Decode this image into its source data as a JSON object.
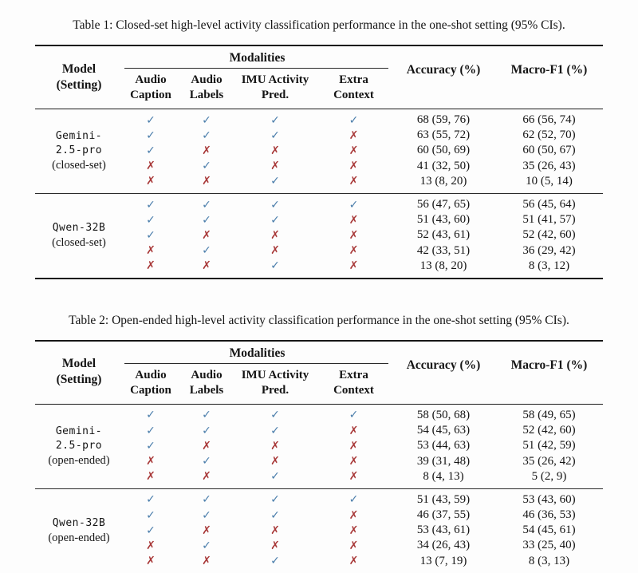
{
  "colors": {
    "check_blue": "#4a7dab",
    "cross_red": "#a83838",
    "rule_black": "#161616"
  },
  "glyphs": {
    "check": "✓",
    "cross": "✗"
  },
  "tables": [
    {
      "caption": "Table 1: Closed-set high-level activity classification performance in the one-shot setting (95% CIs).",
      "header": {
        "model_line1": "Model",
        "model_line2": "(Setting)",
        "modalities": "Modalities",
        "columns": [
          [
            "Audio",
            "Caption"
          ],
          [
            "Audio",
            "Labels"
          ],
          [
            "IMU Activity",
            "Pred."
          ],
          [
            "Extra",
            "Context"
          ]
        ],
        "accuracy": "Accuracy (%)",
        "macro_f1": "Macro-F1 (%)"
      },
      "sections": [
        {
          "model_lines": [
            "Gemini-",
            "2.5-pro"
          ],
          "setting": "(closed-set)",
          "rows": [
            {
              "marks": [
                "check",
                "check",
                "check",
                "check"
              ],
              "accuracy": "68 (59, 76)",
              "macro_f1": "66 (56, 74)"
            },
            {
              "marks": [
                "check",
                "check",
                "check",
                "cross"
              ],
              "accuracy": "63 (55, 72)",
              "macro_f1": "62 (52, 70)"
            },
            {
              "marks": [
                "check",
                "cross",
                "cross",
                "cross"
              ],
              "accuracy": "60 (50, 69)",
              "macro_f1": "60 (50, 67)"
            },
            {
              "marks": [
                "cross",
                "check",
                "cross",
                "cross"
              ],
              "accuracy": "41 (32, 50)",
              "macro_f1": "35 (26, 43)"
            },
            {
              "marks": [
                "cross",
                "cross",
                "check",
                "cross"
              ],
              "accuracy": "13 (8, 20)",
              "macro_f1": "10 (5, 14)"
            }
          ]
        },
        {
          "model_lines": [
            "Qwen-32B"
          ],
          "setting": "(closed-set)",
          "rows": [
            {
              "marks": [
                "check",
                "check",
                "check",
                "check"
              ],
              "accuracy": "56 (47, 65)",
              "macro_f1": "56 (45, 64)"
            },
            {
              "marks": [
                "check",
                "check",
                "check",
                "cross"
              ],
              "accuracy": "51 (43, 60)",
              "macro_f1": "51 (41, 57)"
            },
            {
              "marks": [
                "check",
                "cross",
                "cross",
                "cross"
              ],
              "accuracy": "52 (43, 61)",
              "macro_f1": "52 (42, 60)"
            },
            {
              "marks": [
                "cross",
                "check",
                "cross",
                "cross"
              ],
              "accuracy": "42 (33, 51)",
              "macro_f1": "36 (29, 42)"
            },
            {
              "marks": [
                "cross",
                "cross",
                "check",
                "cross"
              ],
              "accuracy": "13 (8, 20)",
              "macro_f1": "8 (3, 12)"
            }
          ]
        }
      ]
    },
    {
      "caption": "Table 2: Open-ended high-level activity classification performance in the one-shot setting (95% CIs).",
      "header": {
        "model_line1": "Model",
        "model_line2": "(Setting)",
        "modalities": "Modalities",
        "columns": [
          [
            "Audio",
            "Caption"
          ],
          [
            "Audio",
            "Labels"
          ],
          [
            "IMU Activity",
            "Pred."
          ],
          [
            "Extra",
            "Context"
          ]
        ],
        "accuracy": "Accuracy (%)",
        "macro_f1": "Macro-F1 (%)"
      },
      "sections": [
        {
          "model_lines": [
            "Gemini-",
            "2.5-pro"
          ],
          "setting": "(open-ended)",
          "rows": [
            {
              "marks": [
                "check",
                "check",
                "check",
                "check"
              ],
              "accuracy": "58 (50, 68)",
              "macro_f1": "58 (49, 65)"
            },
            {
              "marks": [
                "check",
                "check",
                "check",
                "cross"
              ],
              "accuracy": "54 (45, 63)",
              "macro_f1": "52 (42, 60)"
            },
            {
              "marks": [
                "check",
                "cross",
                "cross",
                "cross"
              ],
              "accuracy": "53 (44, 63)",
              "macro_f1": "51 (42, 59)"
            },
            {
              "marks": [
                "cross",
                "check",
                "cross",
                "cross"
              ],
              "accuracy": "39 (31, 48)",
              "macro_f1": "35 (26, 42)"
            },
            {
              "marks": [
                "cross",
                "cross",
                "check",
                "cross"
              ],
              "accuracy": "8 (4, 13)",
              "macro_f1": "5 (2, 9)"
            }
          ]
        },
        {
          "model_lines": [
            "Qwen-32B"
          ],
          "setting": "(open-ended)",
          "rows": [
            {
              "marks": [
                "check",
                "check",
                "check",
                "check"
              ],
              "accuracy": "51 (43, 59)",
              "macro_f1": "53 (43, 60)"
            },
            {
              "marks": [
                "check",
                "check",
                "check",
                "cross"
              ],
              "accuracy": "46 (37, 55)",
              "macro_f1": "46 (36, 53)"
            },
            {
              "marks": [
                "check",
                "cross",
                "cross",
                "cross"
              ],
              "accuracy": "53 (43, 61)",
              "macro_f1": "54 (45, 61)"
            },
            {
              "marks": [
                "cross",
                "check",
                "cross",
                "cross"
              ],
              "accuracy": "34 (26, 43)",
              "macro_f1": "33 (25, 40)"
            },
            {
              "marks": [
                "cross",
                "cross",
                "check",
                "cross"
              ],
              "accuracy": "13 (7, 19)",
              "macro_f1": "8 (3, 13)"
            }
          ]
        }
      ]
    }
  ]
}
